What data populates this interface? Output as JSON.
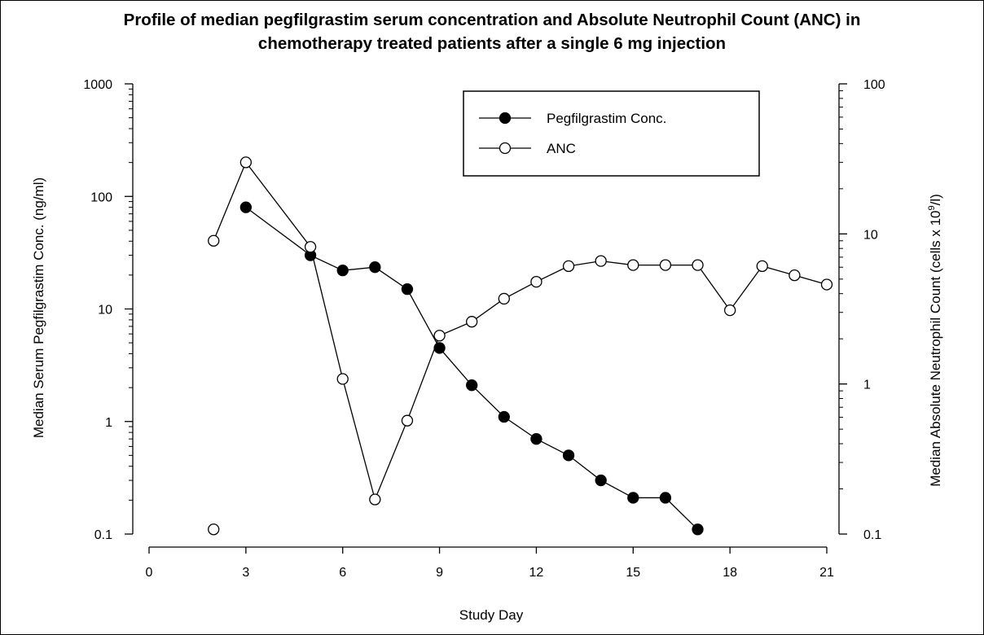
{
  "chart_data": {
    "type": "line",
    "title_line1": "Profile of median pegfilgrastim serum concentration and Absolute Neutrophil Count (ANC) in",
    "title_line2": "chemotherapy treated patients after a single 6 mg injection",
    "xlabel": "Study Day",
    "ylabel_left": "Median Serum Pegfilgrastim Conc. (ng/ml)",
    "ylabel_right_main": "Median Absolute Neutrophil Count (cells x 10",
    "ylabel_right_sup": "9",
    "ylabel_right_tail": "/l)",
    "xlim": [
      0,
      21
    ],
    "x_ticks": [
      "0",
      "3",
      "6",
      "9",
      "12",
      "15",
      "18",
      "21"
    ],
    "y_left_scale": "log",
    "y_left_lim": [
      0.1,
      1000
    ],
    "y_left_ticks": [
      "0.1",
      "1",
      "10",
      "100",
      "1000"
    ],
    "y_right_scale": "log",
    "y_right_lim": [
      0.1,
      100
    ],
    "y_right_ticks": [
      "0.1",
      "1",
      "10",
      "100"
    ],
    "legend_position": "top-center",
    "series": [
      {
        "name": "Pegfilgrastim Conc.",
        "axis": "left",
        "marker": "filled-circle",
        "color": "#000000",
        "x": [
          3,
          5,
          6,
          7,
          8,
          9,
          10,
          11,
          12,
          13,
          14,
          15,
          16,
          17
        ],
        "y": [
          80,
          30,
          22,
          23.5,
          15,
          4.5,
          2.1,
          1.1,
          0.7,
          0.5,
          0.3,
          0.21,
          0.21,
          0.11
        ]
      },
      {
        "name": "ANC",
        "axis": "right",
        "marker": "open-circle",
        "color": "#000000",
        "x": [
          2,
          3,
          5,
          6,
          7,
          8,
          9,
          10,
          11,
          12,
          13,
          14,
          15,
          16,
          17,
          18,
          19,
          20,
          21
        ],
        "y": [
          9,
          30,
          8.2,
          1.08,
          0.17,
          0.57,
          2.1,
          2.6,
          3.7,
          4.8,
          6.1,
          6.6,
          6.2,
          6.2,
          6.2,
          3.1,
          6.1,
          5.3,
          4.6
        ]
      },
      {
        "name": "",
        "axis": "left",
        "marker": "open-circle",
        "color": "#000000",
        "x": [
          2
        ],
        "y": [
          0.11
        ]
      }
    ]
  }
}
